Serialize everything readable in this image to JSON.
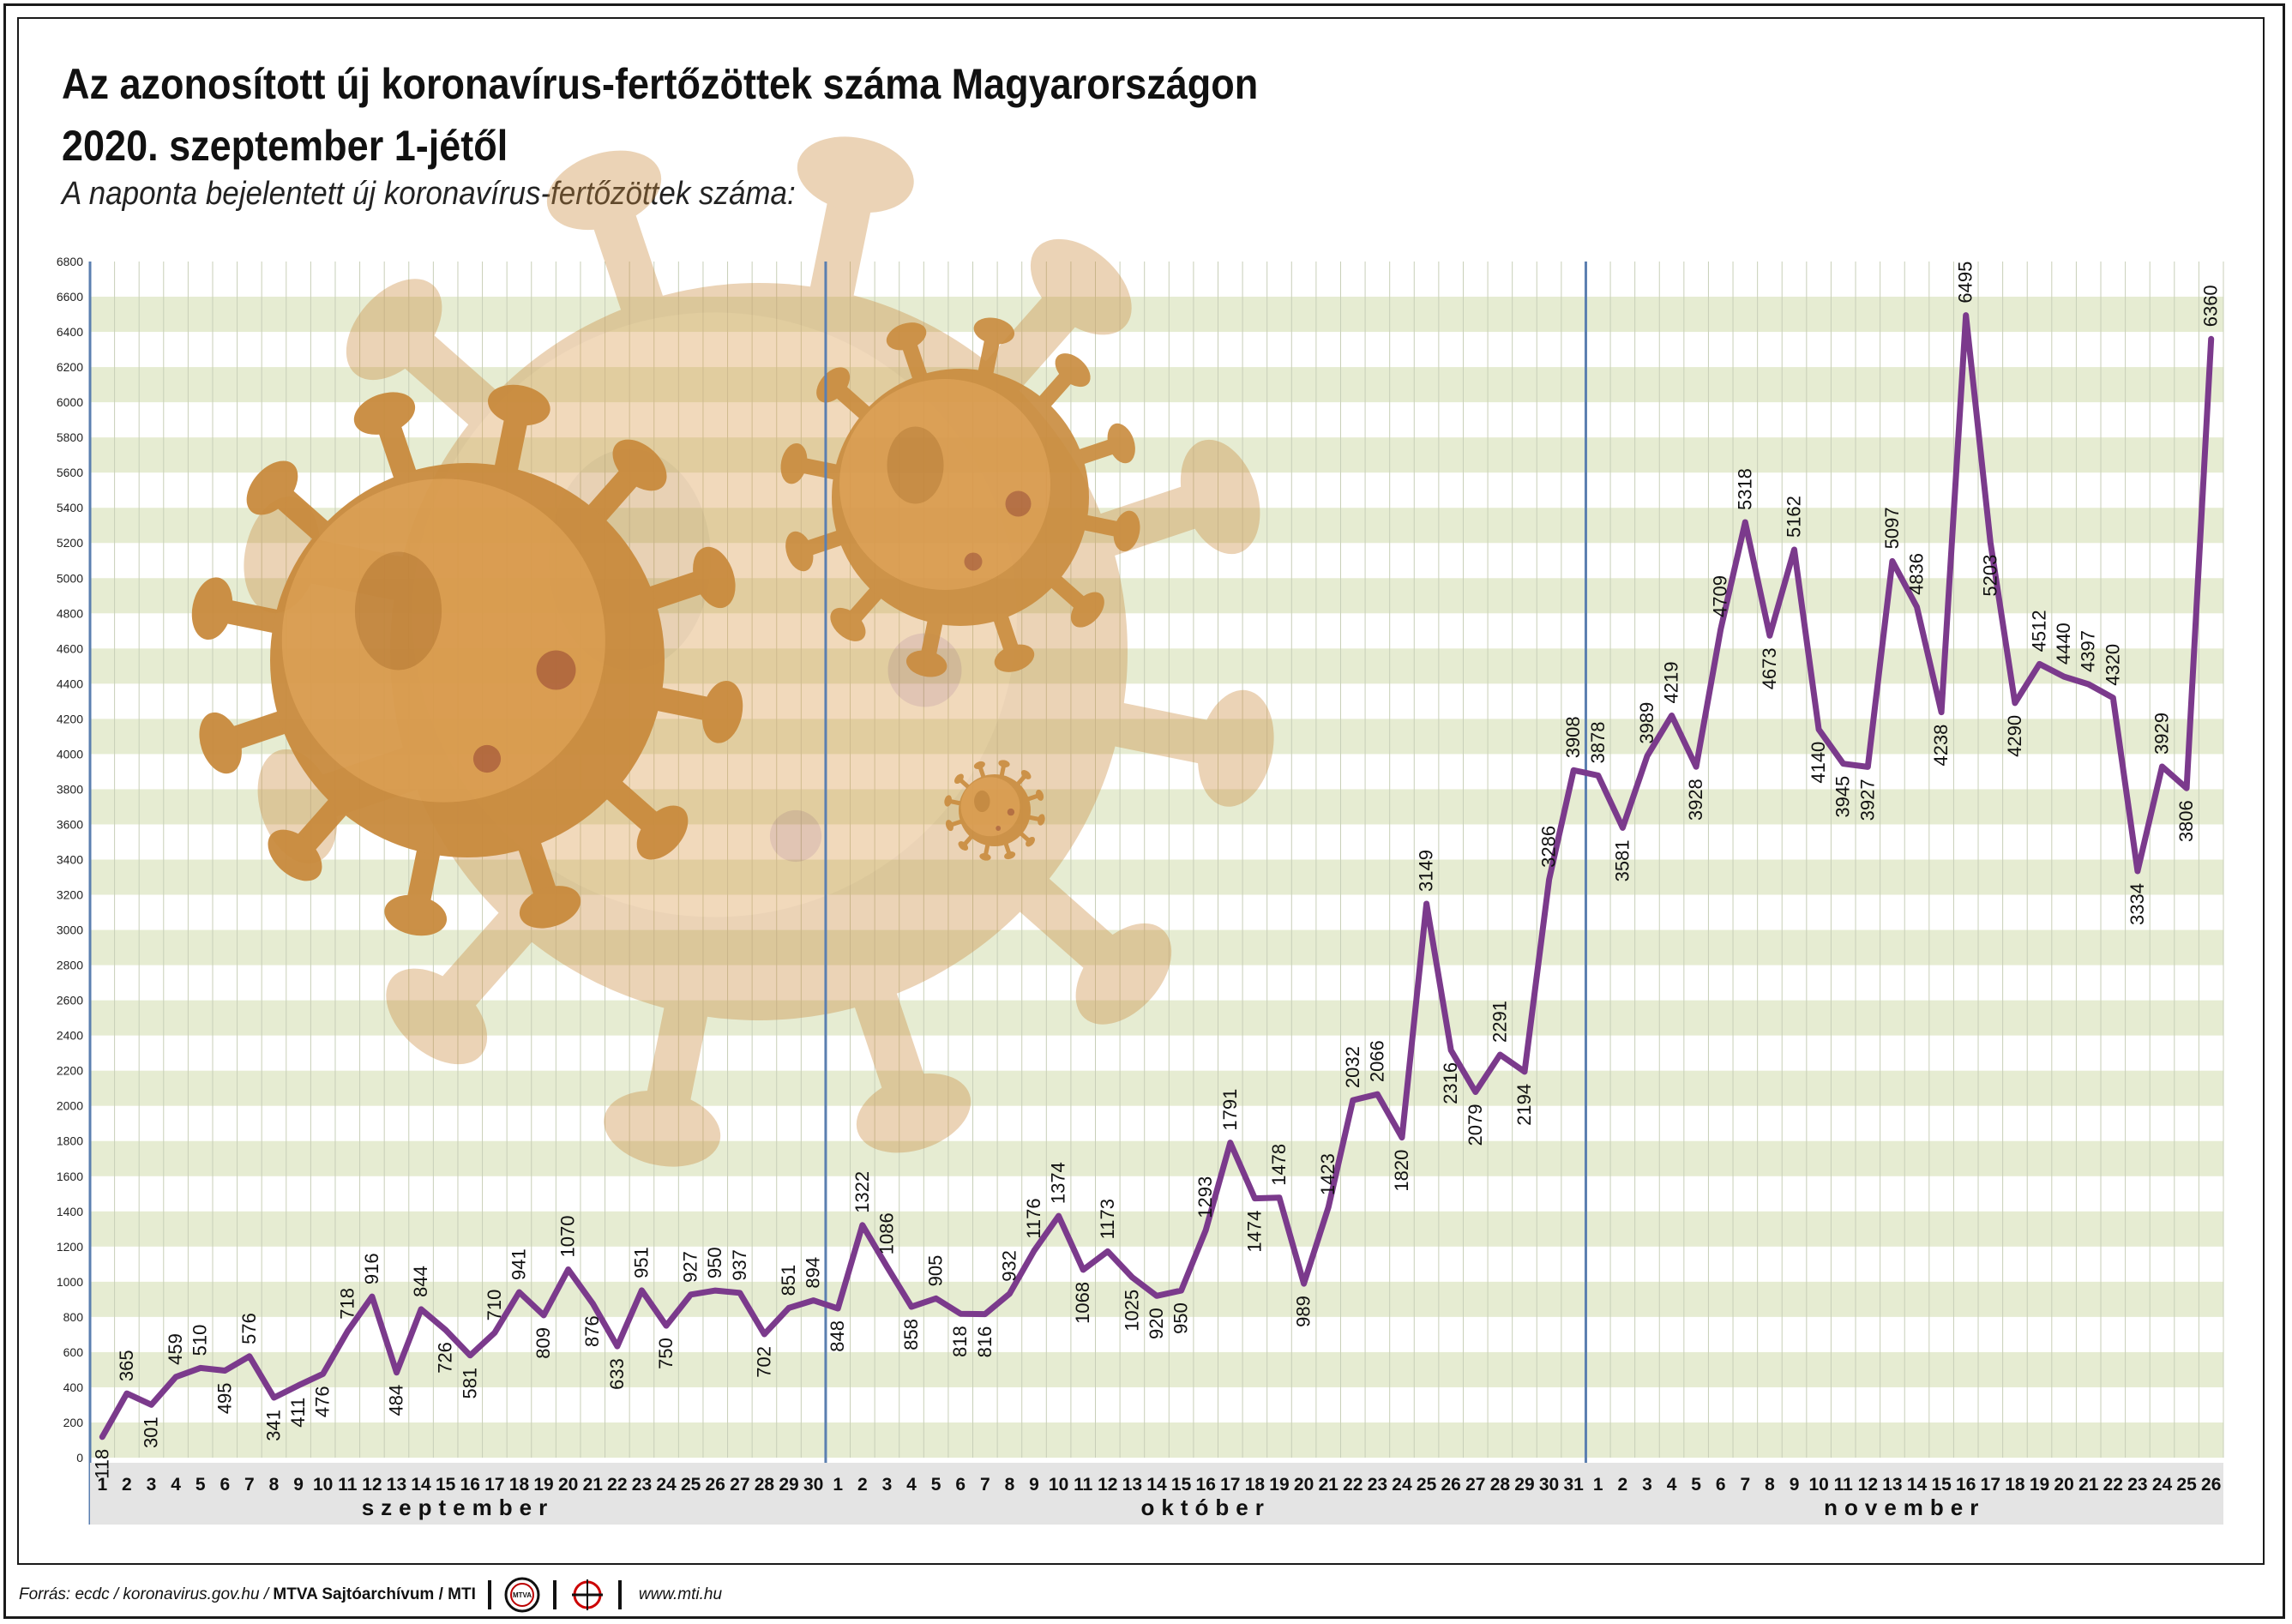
{
  "header": {
    "title_line1": "Az azonosított új koronavírus-fertőzöttek száma Magyarországon",
    "title_line2": "2020. szeptember 1-jétől",
    "subtitle": "A naponta bejelentett új koronavírus-fertőzöttek száma:"
  },
  "footer": {
    "source": "Forrás: ecdc / koronavirus.gov.hu / ",
    "agency": "MTVA Sajtóarchívum / MTI",
    "logo1_text": "MTVA",
    "url": "www.mti.hu"
  },
  "colors": {
    "line": "#7b3a8c",
    "stripe": "#e6ecd2",
    "grid": "#c8cfb8",
    "month_divider": "#5b7fb0",
    "axis_band": "#e4e4e4",
    "virus": "#c98b3e"
  },
  "decorations": [
    "coronavirus-illustration-large",
    "coronavirus-illustration-faded",
    "coronavirus-illustration-medium",
    "coronavirus-illustration-small"
  ],
  "chart_data": {
    "type": "line",
    "ylim": [
      0,
      6800
    ],
    "yticks": [
      0,
      200,
      400,
      600,
      800,
      1000,
      1200,
      1400,
      1600,
      1800,
      2000,
      2200,
      2400,
      2600,
      2800,
      3000,
      3200,
      3400,
      3600,
      3800,
      4000,
      4200,
      4400,
      4600,
      4800,
      5000,
      5200,
      5400,
      5600,
      5800,
      6000,
      6200,
      6400,
      6600,
      6800
    ],
    "months": [
      {
        "name": "szeptember",
        "days": 30
      },
      {
        "name": "október",
        "days": 31
      },
      {
        "name": "november",
        "days": 26
      }
    ],
    "series": [
      {
        "values": [
          118,
          365,
          301,
          459,
          510,
          495,
          576,
          341,
          411,
          476,
          718,
          916,
          484,
          844,
          726,
          581,
          710,
          941,
          809,
          1070,
          876,
          633,
          951,
          750,
          927,
          950,
          937,
          702,
          851,
          894,
          848,
          1322,
          1086,
          858,
          905,
          818,
          816,
          932,
          1176,
          1374,
          1068,
          1173,
          1025,
          920,
          950,
          1293,
          1791,
          1474,
          1478,
          989,
          1423,
          2032,
          2066,
          1820,
          3149,
          2316,
          2079,
          2291,
          2194,
          3286,
          3908,
          3878,
          3581,
          3989,
          4219,
          3928,
          4709,
          5318,
          4673,
          5162,
          4140,
          3945,
          3927,
          5097,
          4836,
          4238,
          6495,
          5203,
          4290,
          4512,
          4440,
          4397,
          4320,
          3334,
          3929,
          3806,
          6360
        ],
        "label_position": [
          "b",
          "a",
          "b",
          "a",
          "a",
          "b",
          "a",
          "b",
          "b",
          "b",
          "a",
          "a",
          "b",
          "a",
          "b",
          "b",
          "a",
          "a",
          "b",
          "a",
          "b",
          "b",
          "a",
          "b",
          "a",
          "a",
          "a",
          "b",
          "a",
          "a",
          "b",
          "a",
          "a",
          "b",
          "a",
          "b",
          "b",
          "a",
          "a",
          "a",
          "b",
          "a",
          "b",
          "b",
          "b",
          "a",
          "a",
          "b",
          "a",
          "b",
          "a",
          "a",
          "a",
          "b",
          "a",
          "b",
          "b",
          "a",
          "b",
          "a",
          "a",
          "a",
          "b",
          "a",
          "a",
          "b",
          "a",
          "a",
          "b",
          "a",
          "b",
          "b",
          "b",
          "a",
          "a",
          "b",
          "a",
          "b",
          "b",
          "a",
          "a",
          "a",
          "a",
          "b",
          "a",
          "b",
          "a"
        ]
      }
    ]
  }
}
